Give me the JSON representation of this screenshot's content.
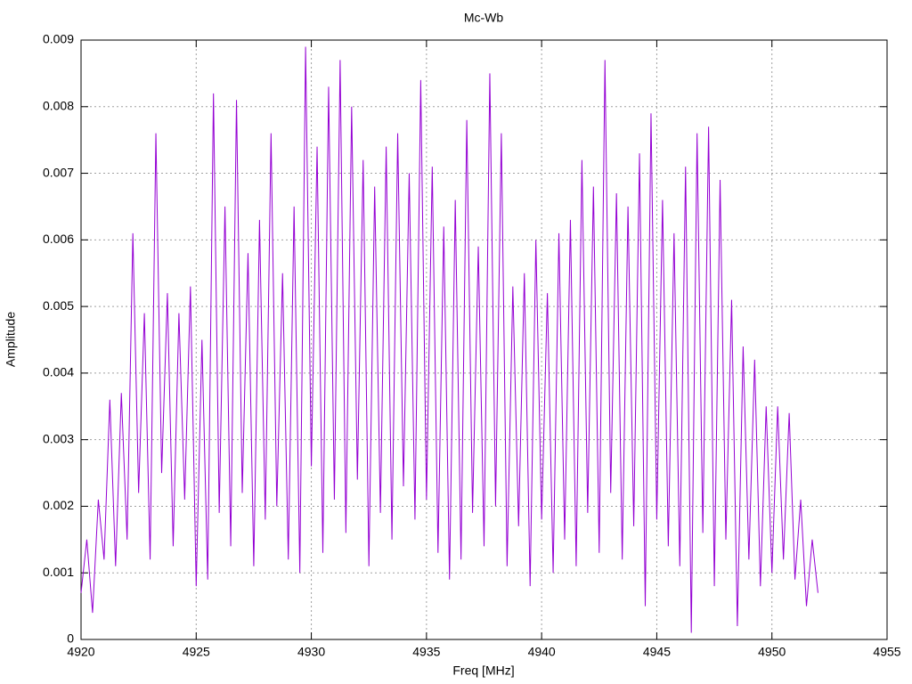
{
  "chart_data": {
    "type": "line",
    "title": "Mc-Wb",
    "xlabel": "Freq [MHz]",
    "ylabel": "Amplitude",
    "x": [
      4920,
      4920.25,
      4920.5,
      4920.75,
      4921,
      4921.25,
      4921.5,
      4921.75,
      4922,
      4922.25,
      4922.5,
      4922.75,
      4923,
      4923.25,
      4923.5,
      4923.75,
      4924,
      4924.25,
      4924.5,
      4924.75,
      4925,
      4925.25,
      4925.5,
      4925.75,
      4926,
      4926.25,
      4926.5,
      4926.75,
      4927,
      4927.25,
      4927.5,
      4927.75,
      4928,
      4928.25,
      4928.5,
      4928.75,
      4929,
      4929.25,
      4929.5,
      4929.75,
      4930,
      4930.25,
      4930.5,
      4930.75,
      4931,
      4931.25,
      4931.5,
      4931.75,
      4932,
      4932.25,
      4932.5,
      4932.75,
      4933,
      4933.25,
      4933.5,
      4933.75,
      4934,
      4934.25,
      4934.5,
      4934.75,
      4935,
      4935.25,
      4935.5,
      4935.75,
      4936,
      4936.25,
      4936.5,
      4936.75,
      4937,
      4937.25,
      4937.5,
      4937.75,
      4938,
      4938.25,
      4938.5,
      4938.75,
      4939,
      4939.25,
      4939.5,
      4939.75,
      4940,
      4940.25,
      4940.5,
      4940.75,
      4941,
      4941.25,
      4941.5,
      4941.75,
      4942,
      4942.25,
      4942.5,
      4942.75,
      4943,
      4943.25,
      4943.5,
      4943.75,
      4944,
      4944.25,
      4944.5,
      4944.75,
      4945,
      4945.25,
      4945.5,
      4945.75,
      4946,
      4946.25,
      4946.5,
      4946.75,
      4947,
      4947.25,
      4947.5,
      4947.75,
      4948,
      4948.25,
      4948.5,
      4948.75,
      4949,
      4949.25,
      4949.5,
      4949.75,
      4950,
      4950.25,
      4950.5,
      4950.75,
      4951,
      4951.25,
      4951.5,
      4951.75,
      4952
    ],
    "series": [
      {
        "name": "Mc-Wb",
        "color": "#9400d3",
        "values": [
          0.0007,
          0.0015,
          0.0004,
          0.0021,
          0.0012,
          0.0036,
          0.0011,
          0.0037,
          0.0015,
          0.0061,
          0.0022,
          0.0049,
          0.0012,
          0.0076,
          0.0025,
          0.0052,
          0.0014,
          0.0049,
          0.0021,
          0.0053,
          0.0008,
          0.0045,
          0.0009,
          0.0082,
          0.0019,
          0.0065,
          0.0014,
          0.0081,
          0.0022,
          0.0058,
          0.0011,
          0.0063,
          0.0018,
          0.0076,
          0.002,
          0.0055,
          0.0012,
          0.0065,
          0.001,
          0.0089,
          0.0026,
          0.0074,
          0.0013,
          0.0083,
          0.0021,
          0.0087,
          0.0016,
          0.008,
          0.0024,
          0.0072,
          0.0011,
          0.0068,
          0.0019,
          0.0074,
          0.0015,
          0.0076,
          0.0023,
          0.007,
          0.0018,
          0.0084,
          0.0021,
          0.0071,
          0.0013,
          0.0062,
          0.0009,
          0.0066,
          0.0012,
          0.0078,
          0.0019,
          0.0059,
          0.0014,
          0.0085,
          0.002,
          0.0076,
          0.0011,
          0.0053,
          0.0017,
          0.0055,
          0.0008,
          0.006,
          0.0018,
          0.0052,
          0.001,
          0.0061,
          0.0015,
          0.0063,
          0.0011,
          0.0072,
          0.0019,
          0.0068,
          0.0013,
          0.0087,
          0.0022,
          0.0067,
          0.0012,
          0.0065,
          0.0017,
          0.0073,
          0.0005,
          0.0079,
          0.0018,
          0.0066,
          0.0014,
          0.0061,
          0.0011,
          0.0071,
          0.0001,
          0.0076,
          0.0016,
          0.0077,
          0.0008,
          0.0069,
          0.0015,
          0.0051,
          0.0002,
          0.0044,
          0.0012,
          0.0042,
          0.0008,
          0.0035,
          0.001,
          0.0035,
          0.0012,
          0.0034,
          0.0009,
          0.0021,
          0.0005,
          0.0015,
          0.0007
        ]
      }
    ],
    "xlim": [
      4920,
      4955
    ],
    "xticks": [
      4920,
      4925,
      4930,
      4935,
      4940,
      4945,
      4950,
      4955
    ],
    "ylim": [
      0,
      0.009
    ],
    "yticks": [
      0,
      0.001,
      0.002,
      0.003,
      0.004,
      0.005,
      0.006,
      0.007,
      0.008,
      0.009
    ],
    "grid": true
  }
}
